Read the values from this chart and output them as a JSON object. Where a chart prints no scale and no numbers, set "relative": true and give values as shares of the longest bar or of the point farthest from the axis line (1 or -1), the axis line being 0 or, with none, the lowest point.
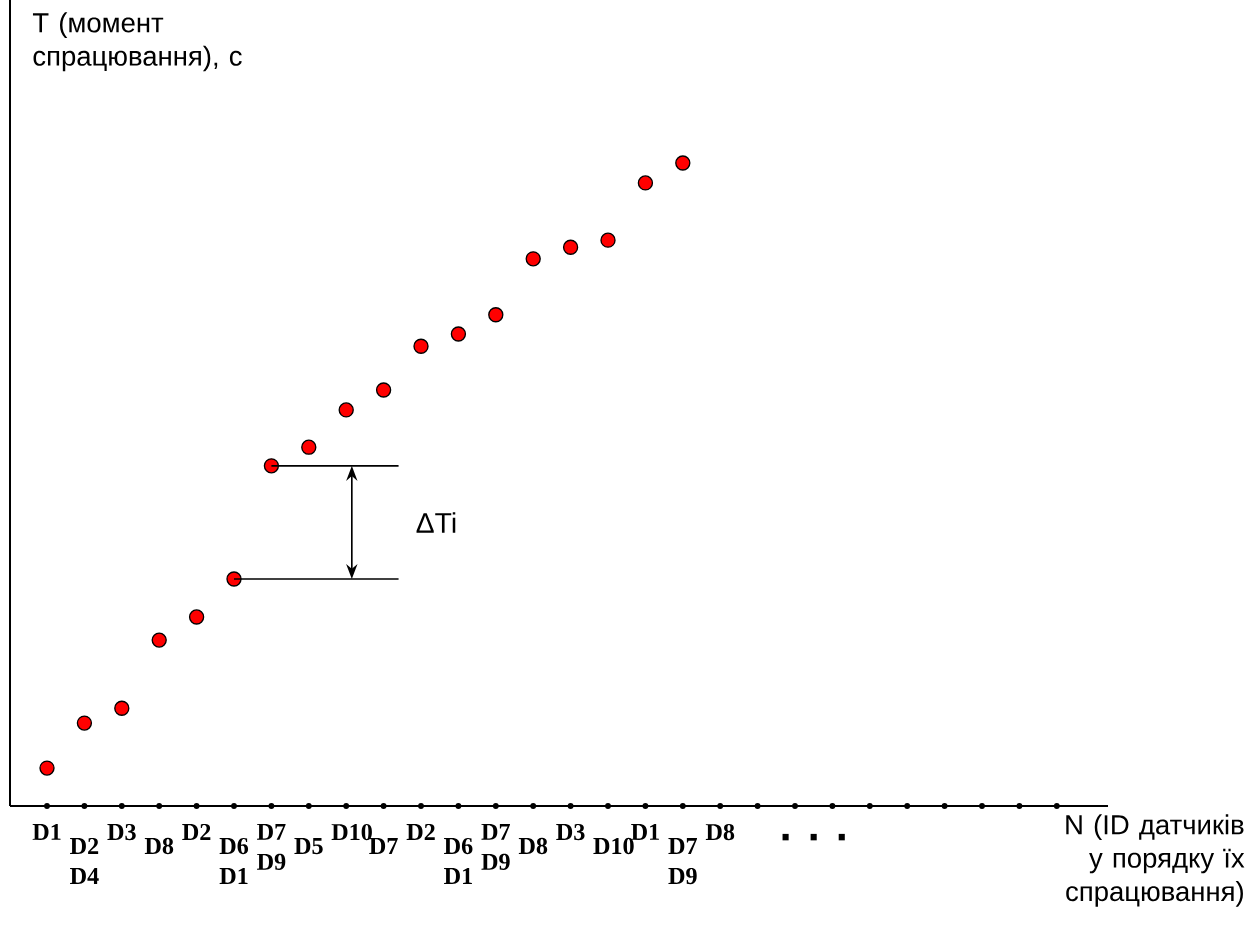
{
  "chart_data": {
    "type": "scatter",
    "relative": true,
    "xlabel": "N (ID датчиків у порядку їх спрацювання)",
    "ylabel": "T (момент спрацювання), с",
    "categories": [
      "D1",
      "D2 D4",
      "D3",
      "D8",
      "D2",
      "D6 D1",
      "D7 D9",
      "D5",
      "D10",
      "D7",
      "D2",
      "D6 D1",
      "D7 D9",
      "D8",
      "D3",
      "D10",
      "D1",
      "D7 D9",
      "D8",
      null,
      null,
      null,
      null,
      null,
      null,
      null,
      null,
      null
    ],
    "values": [
      0.059,
      0.129,
      0.152,
      0.258,
      0.294,
      0.353,
      0.529,
      0.558,
      0.616,
      0.647,
      0.715,
      0.734,
      0.764,
      0.851,
      0.869,
      0.88,
      0.969,
      1,
      null,
      null,
      null,
      null,
      null,
      null,
      null,
      null,
      null,
      null
    ],
    "color": "#ff0000",
    "marker": "circle",
    "tick_labels": "x",
    "annotations": [
      "ΔTi",
      ". . ."
    ]
  }
}
